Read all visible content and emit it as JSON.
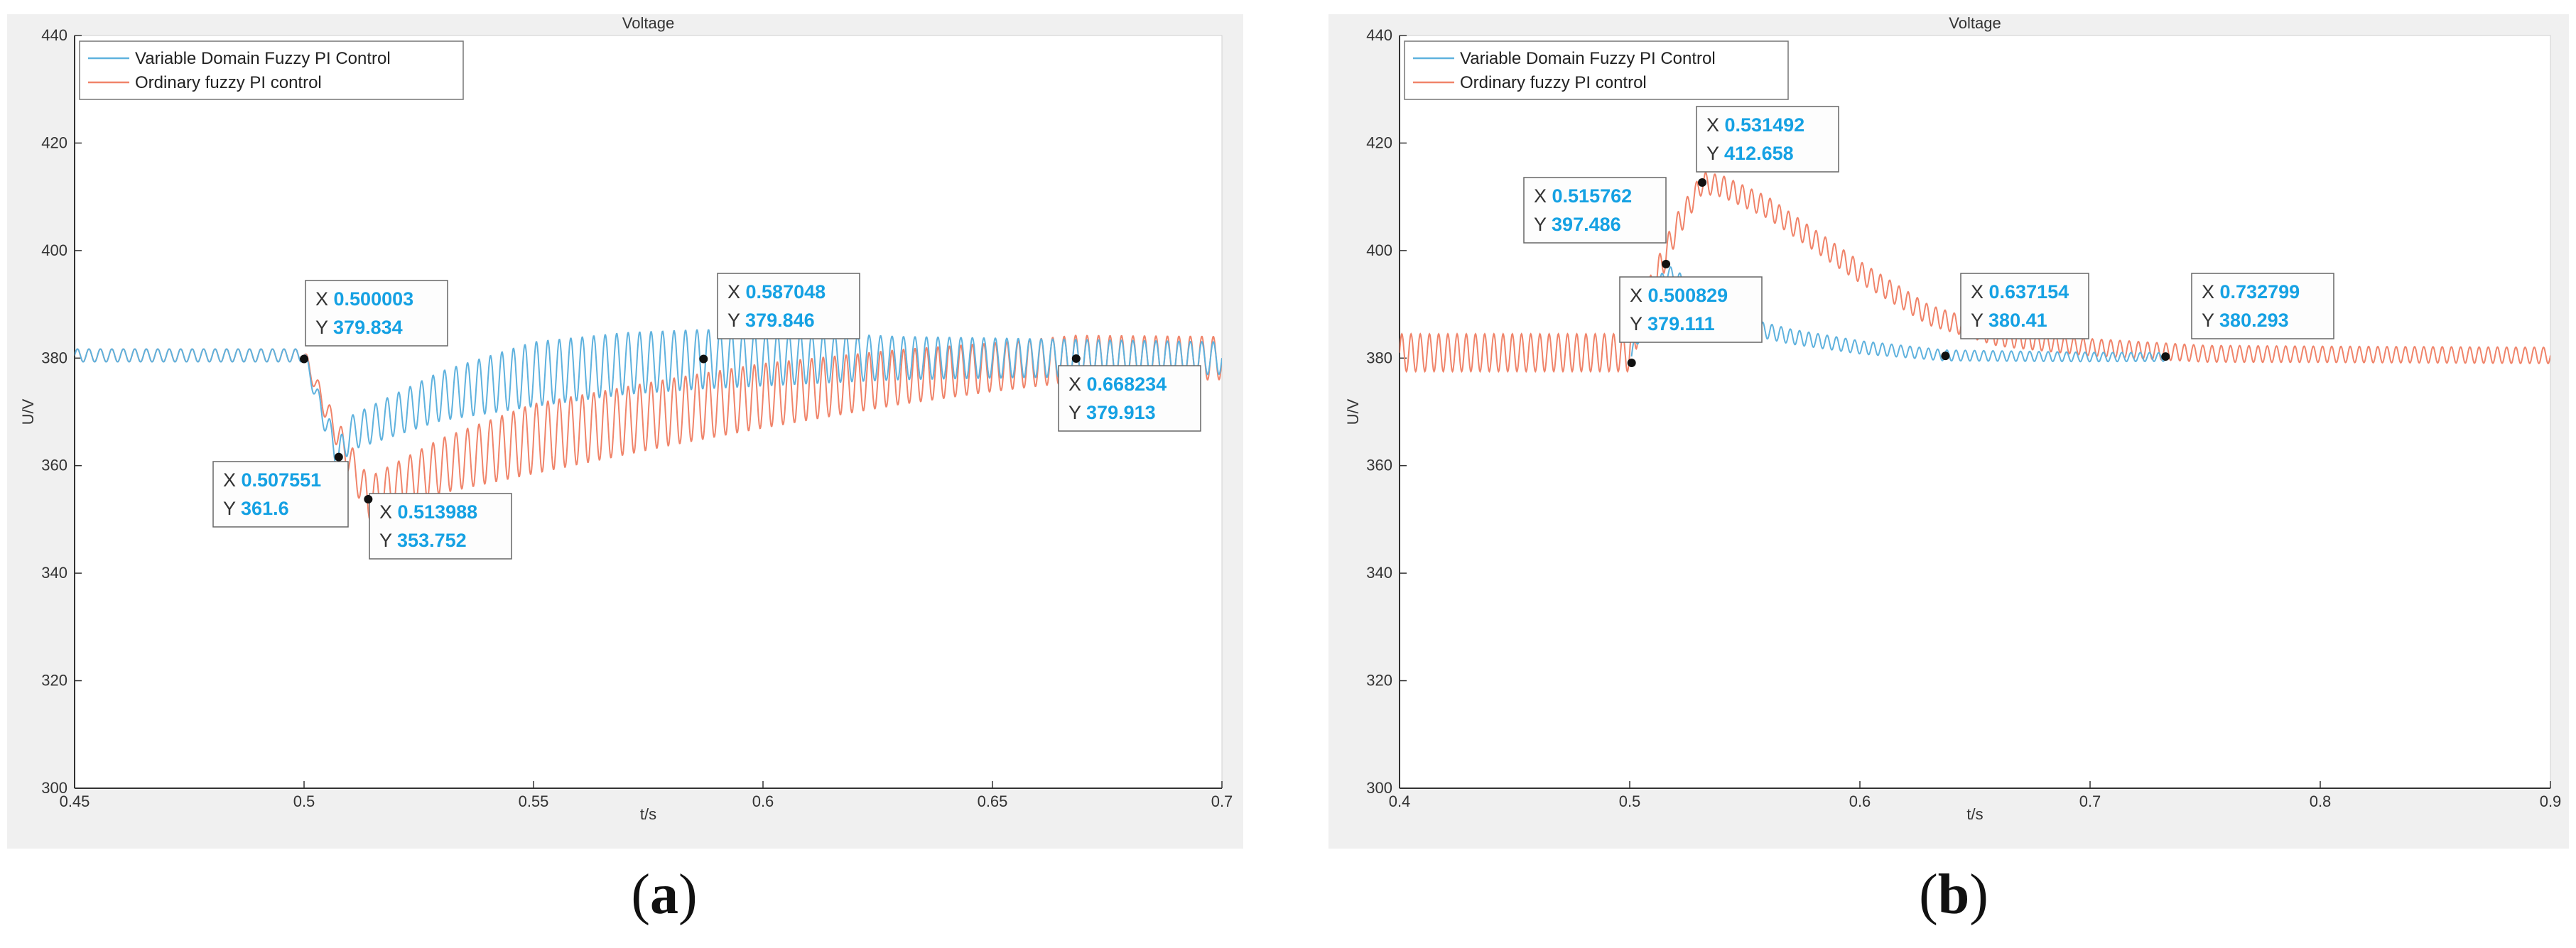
{
  "chart_data": [
    {
      "type": "line",
      "panel_label": "a",
      "title": "Voltage",
      "xlabel": "t/s",
      "ylabel": "U/V",
      "xlim": [
        0.45,
        0.7
      ],
      "ylim": [
        300,
        440
      ],
      "xticks": [
        "0.45",
        "0.5",
        "0.55",
        "0.6",
        "0.65",
        "0.7"
      ],
      "yticks": [
        "300",
        "320",
        "340",
        "360",
        "380",
        "400",
        "420",
        "440"
      ],
      "grid": false,
      "legend_position": "top-left",
      "series": [
        {
          "name": "Variable Domain Fuzzy PI Control",
          "color": "#5fb2de",
          "points": [
            [
              0.45,
              380.5
            ],
            [
              0.5,
              380.5
            ],
            [
              0.5035,
              371
            ],
            [
              0.5075,
              361.6
            ],
            [
              0.51,
              366
            ],
            [
              0.53,
              373
            ],
            [
              0.55,
              377
            ],
            [
              0.57,
              379
            ],
            [
              0.587,
              379.8
            ],
            [
              0.62,
              380
            ],
            [
              0.65,
              380
            ],
            [
              0.7,
              380
            ]
          ],
          "ripple": [
            [
              0.45,
              1.2
            ],
            [
              0.5,
              1.2
            ],
            [
              0.5075,
              3
            ],
            [
              0.55,
              6
            ],
            [
              0.587,
              5.5
            ],
            [
              0.63,
              4
            ],
            [
              0.7,
              3
            ]
          ]
        },
        {
          "name": "Ordinary fuzzy PI control",
          "color": "#f0846a",
          "points": [
            [
              0.45,
              380.5
            ],
            [
              0.5,
              380.5
            ],
            [
              0.505,
              370
            ],
            [
              0.514,
              353.8
            ],
            [
              0.53,
              360
            ],
            [
              0.55,
              365
            ],
            [
              0.58,
              370
            ],
            [
              0.6,
              373
            ],
            [
              0.63,
              376.5
            ],
            [
              0.668,
              379.9
            ],
            [
              0.7,
              380
            ]
          ],
          "ripple": [
            [
              0.45,
              1.2
            ],
            [
              0.5,
              1.2
            ],
            [
              0.514,
              4
            ],
            [
              0.55,
              6.5
            ],
            [
              0.6,
              6
            ],
            [
              0.65,
              4.5
            ],
            [
              0.7,
              4
            ]
          ]
        }
      ],
      "annotations": [
        {
          "x_label": "0.500003",
          "y_label": "379.834",
          "x": 0.500003,
          "y": 379.834
        },
        {
          "x_label": "0.507551",
          "y_label": "361.6",
          "x": 0.507551,
          "y": 361.6
        },
        {
          "x_label": "0.513988",
          "y_label": "353.752",
          "x": 0.513988,
          "y": 353.752
        },
        {
          "x_label": "0.587048",
          "y_label": "379.846",
          "x": 0.587048,
          "y": 379.846
        },
        {
          "x_label": "0.668234",
          "y_label": "379.913",
          "x": 0.668234,
          "y": 379.913
        }
      ]
    },
    {
      "type": "line",
      "panel_label": "b",
      "title": "Voltage",
      "xlabel": "t/s",
      "ylabel": "U/V",
      "xlim": [
        0.4,
        0.9
      ],
      "ylim": [
        300,
        440
      ],
      "xticks": [
        "0.4",
        "0.5",
        "0.6",
        "0.7",
        "0.8",
        "0.9"
      ],
      "yticks": [
        "300",
        "320",
        "340",
        "360",
        "380",
        "400",
        "420",
        "440"
      ],
      "grid": false,
      "legend_position": "top-left",
      "series": [
        {
          "name": "Variable Domain Fuzzy PI Control",
          "color": "#5fb2de",
          "points": [
            [
              0.5008,
              380.3
            ],
            [
              0.505,
              386
            ],
            [
              0.5158,
              396
            ],
            [
              0.53,
              392
            ],
            [
              0.55,
              386
            ],
            [
              0.57,
              384
            ],
            [
              0.6,
              382
            ],
            [
              0.637,
              380.5
            ],
            [
              0.7,
              380.2
            ],
            [
              0.733,
              380.2
            ]
          ],
          "ripple": [
            [
              0.5008,
              1.5
            ],
            [
              0.515,
              1.5
            ],
            [
              0.55,
              1.5
            ],
            [
              0.637,
              1
            ],
            [
              0.733,
              0.8
            ]
          ]
        },
        {
          "name": "Ordinary fuzzy PI control",
          "color": "#f0846a",
          "points": [
            [
              0.4,
              381
            ],
            [
              0.5,
              381
            ],
            [
              0.505,
              388
            ],
            [
              0.52,
              404
            ],
            [
              0.5315,
              412.6
            ],
            [
              0.54,
              412
            ],
            [
              0.56,
              408
            ],
            [
              0.58,
              402
            ],
            [
              0.6,
              396
            ],
            [
              0.63,
              388
            ],
            [
              0.66,
              384
            ],
            [
              0.7,
              382
            ],
            [
              0.75,
              380.8
            ],
            [
              0.9,
              380.5
            ]
          ],
          "ripple": [
            [
              0.4,
              3.5
            ],
            [
              0.5,
              3.5
            ],
            [
              0.53,
              2
            ],
            [
              0.6,
              2
            ],
            [
              0.7,
              1.6
            ],
            [
              0.8,
              1.5
            ],
            [
              0.9,
              1.5
            ]
          ]
        }
      ],
      "annotations": [
        {
          "x_label": "0.515762",
          "y_label": "397.486",
          "x": 0.515762,
          "y": 397.486
        },
        {
          "x_label": "0.531492",
          "y_label": "412.658",
          "x": 0.531492,
          "y": 412.658
        },
        {
          "x_label": "0.500829",
          "y_label": "379.111",
          "x": 0.500829,
          "y": 379.111
        },
        {
          "x_label": "0.637154",
          "y_label": "380.41",
          "x": 0.637154,
          "y": 380.41
        },
        {
          "x_label": "0.732799",
          "y_label": "380.293",
          "x": 0.732799,
          "y": 380.293
        }
      ]
    }
  ]
}
